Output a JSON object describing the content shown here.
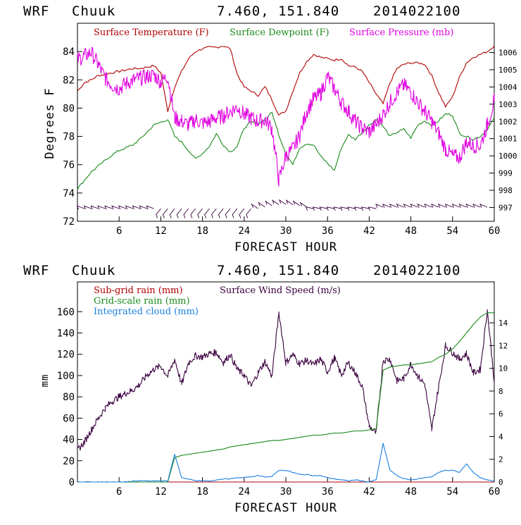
{
  "panel_top": {
    "header_model": "WRF",
    "header_station": "Chuuk",
    "header_coords": "7.460, 151.840",
    "header_date": "2014022100",
    "ylabel": "Degrees F",
    "xlabel": "FORECAST HOUR",
    "legend": [
      "Surface Temperature (F)",
      "Surface Dewpoint (F)",
      "Surface Pressure (mb)"
    ]
  },
  "panel_bottom": {
    "header_model": "WRF",
    "header_station": "Chuuk",
    "header_coords": "7.460, 151.840",
    "header_date": "2014022100",
    "ylabel": "mm",
    "xlabel": "FORECAST HOUR",
    "legend": [
      "Sub-grid rain (mm)",
      "Surface Wind Speed (m/s)",
      "Grid-scale rain (mm)",
      "Integrated cloud (mm)"
    ]
  },
  "colors": {
    "temperature": "#b00000",
    "dewpoint": "#1a8a1a",
    "pressure": "#e000e0",
    "wind": "#3a0040",
    "subgrid": "#b00000",
    "gridscale": "#1a8a1a",
    "cloud": "#1a80e0"
  },
  "chart_data": [
    {
      "type": "line",
      "title": "WRF Chuuk 7.460, 151.840 2014022100",
      "xlabel": "FORECAST HOUR",
      "ylabel": "Degrees F",
      "xlim": [
        0,
        60
      ],
      "ylim": [
        72,
        86
      ],
      "y2lim": [
        996.2,
        1007.7
      ],
      "x_ticks": [
        6,
        12,
        18,
        24,
        30,
        36,
        42,
        48,
        54,
        60
      ],
      "y_ticks": [
        72,
        74,
        76,
        78,
        80,
        82,
        84
      ],
      "y2_ticks": [
        997,
        998,
        999,
        1000,
        1001,
        1002,
        1003,
        1004,
        1005,
        1006
      ],
      "x": [
        0,
        1,
        2,
        3,
        4,
        5,
        6,
        7,
        8,
        9,
        10,
        11,
        12,
        13,
        14,
        15,
        16,
        17,
        18,
        19,
        20,
        21,
        22,
        23,
        24,
        25,
        26,
        27,
        28,
        29,
        30,
        31,
        32,
        33,
        34,
        35,
        36,
        37,
        38,
        39,
        40,
        41,
        42,
        43,
        44,
        45,
        46,
        47,
        48,
        49,
        50,
        51,
        52,
        53,
        54,
        55,
        56,
        57,
        58,
        59,
        60
      ],
      "series": [
        {
          "name": "Surface Temperature (F)",
          "axis": "left",
          "values": [
            81.2,
            81.8,
            82.0,
            82.3,
            82.4,
            82.5,
            82.6,
            82.7,
            82.8,
            82.8,
            82.9,
            83.0,
            82.5,
            79.8,
            81.5,
            82.6,
            83.5,
            84.0,
            84.2,
            84.3,
            84.3,
            84.4,
            84.2,
            82.4,
            81.5,
            81.2,
            80.9,
            81.5,
            80.6,
            79.5,
            79.8,
            81.2,
            82.5,
            83.3,
            83.8,
            83.6,
            83.5,
            83.4,
            83.5,
            83.0,
            82.9,
            82.6,
            81.8,
            81.0,
            80.3,
            81.8,
            82.8,
            83.1,
            83.2,
            83.2,
            83.1,
            82.3,
            81.1,
            80.1,
            80.8,
            82.2,
            83.2,
            83.6,
            83.8,
            84.0,
            84.4
          ]
        },
        {
          "name": "Surface Dewpoint (F)",
          "axis": "left",
          "values": [
            74.3,
            74.9,
            75.5,
            75.9,
            76.3,
            76.7,
            77.0,
            77.2,
            77.4,
            77.8,
            78.3,
            78.8,
            79.0,
            79.2,
            78.0,
            77.6,
            77.0,
            76.4,
            76.8,
            77.3,
            78.2,
            77.4,
            76.9,
            77.3,
            78.6,
            79.0,
            78.9,
            79.2,
            79.7,
            78.1,
            76.8,
            76.0,
            77.2,
            77.5,
            77.4,
            76.6,
            76.1,
            75.6,
            77.2,
            78.1,
            77.8,
            78.3,
            78.8,
            79.2,
            78.7,
            78.0,
            78.3,
            78.5,
            77.9,
            78.8,
            79.1,
            78.8,
            79.1,
            79.6,
            79.5,
            78.2,
            78.0,
            77.8,
            78.0,
            78.5,
            79.3
          ]
        },
        {
          "name": "Surface Pressure (mb)",
          "axis": "right",
          "values": [
            1005.6,
            1005.8,
            1006.0,
            1005.3,
            1004.5,
            1004.1,
            1003.9,
            1004.2,
            1004.4,
            1004.5,
            1004.6,
            1004.7,
            1004.3,
            1004.6,
            1002.2,
            1002.0,
            1001.8,
            1002.1,
            1001.9,
            1002.0,
            1002.2,
            1002.3,
            1002.6,
            1002.8,
            1002.4,
            1002.2,
            1002.0,
            1002.1,
            1001.6,
            998.6,
            1000.0,
            1000.4,
            1001.2,
            1002.6,
            1003.3,
            1003.6,
            1004.6,
            1003.9,
            1003.1,
            1002.6,
            1002.0,
            1001.6,
            1001.4,
            1001.8,
            1002.4,
            1003.1,
            1003.7,
            1004.1,
            1003.7,
            1003.1,
            1002.6,
            1002.0,
            1001.3,
            1000.4,
            1000.0,
            999.9,
            1000.8,
            1000.6,
            1000.6,
            1001.8,
            1003.2
          ]
        }
      ]
    },
    {
      "type": "line",
      "title": "WRF Chuuk 7.460, 151.840 2014022100",
      "xlabel": "FORECAST HOUR",
      "ylabel": "mm",
      "xlim": [
        0,
        60
      ],
      "ylim": [
        0,
        188
      ],
      "y2lim": [
        0,
        17.6
      ],
      "x_ticks": [
        6,
        12,
        18,
        24,
        30,
        36,
        42,
        48,
        54,
        60
      ],
      "y_ticks": [
        0,
        20,
        40,
        60,
        80,
        100,
        120,
        140,
        160
      ],
      "y2_ticks": [
        0,
        2,
        4,
        6,
        8,
        10,
        12,
        14
      ],
      "x": [
        0,
        1,
        2,
        3,
        4,
        5,
        6,
        7,
        8,
        9,
        10,
        11,
        12,
        13,
        14,
        15,
        16,
        17,
        18,
        19,
        20,
        21,
        22,
        23,
        24,
        25,
        26,
        27,
        28,
        29,
        30,
        31,
        32,
        33,
        34,
        35,
        36,
        37,
        38,
        39,
        40,
        41,
        42,
        43,
        44,
        45,
        46,
        47,
        48,
        49,
        50,
        51,
        52,
        53,
        54,
        55,
        56,
        57,
        58,
        59,
        60
      ],
      "series": [
        {
          "name": "Surface Wind Speed (m/s)",
          "axis": "right",
          "values": [
            2.8,
            3.5,
            4.6,
            5.6,
            6.5,
            7.1,
            7.5,
            7.8,
            8.1,
            8.6,
            9.4,
            9.9,
            10.2,
            9.3,
            10.8,
            8.6,
            10.5,
            11.1,
            11.0,
            11.3,
            11.4,
            10.5,
            11.2,
            9.9,
            9.4,
            8.4,
            9.6,
            10.6,
            9.3,
            14.9,
            10.5,
            11.2,
            10.4,
            10.7,
            10.3,
            10.8,
            9.7,
            10.9,
            9.4,
            10.5,
            9.6,
            8.4,
            4.9,
            4.3,
            10.7,
            10.8,
            8.9,
            9.1,
            10.4,
            9.3,
            8.6,
            4.6,
            8.4,
            12.0,
            11.4,
            10.8,
            11.3,
            9.6,
            9.9,
            15.1,
            8.9
          ]
        },
        {
          "name": "Sub-grid rain (mm)",
          "axis": "left",
          "values": [
            0,
            0,
            0,
            0,
            0,
            0,
            0,
            0,
            0,
            0,
            0,
            0,
            0,
            0,
            0,
            0,
            0,
            0,
            0,
            0,
            0,
            0,
            0,
            0,
            0,
            0,
            0,
            0,
            0,
            0,
            0,
            0,
            0,
            0,
            0,
            0,
            0,
            0,
            0,
            0,
            0,
            0,
            0,
            0,
            0,
            0,
            0,
            0,
            0,
            0,
            0,
            0,
            0,
            0,
            0,
            0,
            0,
            0,
            0,
            0,
            0
          ]
        },
        {
          "name": "Grid-scale rain (mm)",
          "axis": "left",
          "values": [
            0,
            0,
            0,
            0,
            0,
            0,
            0,
            0,
            0,
            0,
            0,
            0,
            0,
            0,
            23,
            25,
            26,
            27,
            28,
            29,
            30,
            31,
            33,
            34,
            35,
            36,
            37,
            38,
            39,
            39,
            40,
            41,
            42,
            43,
            44,
            44,
            45,
            46,
            46,
            47,
            48,
            48,
            49,
            50,
            105,
            108,
            109,
            110,
            110,
            111,
            112,
            113,
            117,
            120,
            125,
            132,
            140,
            148,
            155,
            159,
            159
          ]
        },
        {
          "name": "Integrated cloud (mm)",
          "axis": "left",
          "values": [
            0,
            0,
            0,
            0,
            0,
            0,
            0,
            0,
            1,
            1,
            1,
            1,
            1,
            1,
            26,
            4,
            3,
            1,
            1,
            1,
            2,
            3,
            3,
            4,
            4,
            5,
            6,
            5,
            5,
            11,
            11,
            9,
            7,
            7,
            6,
            6,
            4,
            3,
            2,
            1,
            2,
            1,
            0,
            2,
            36,
            11,
            6,
            3,
            2,
            3,
            4,
            5,
            9,
            11,
            11,
            9,
            17,
            9,
            4,
            2,
            1
          ]
        }
      ]
    }
  ]
}
